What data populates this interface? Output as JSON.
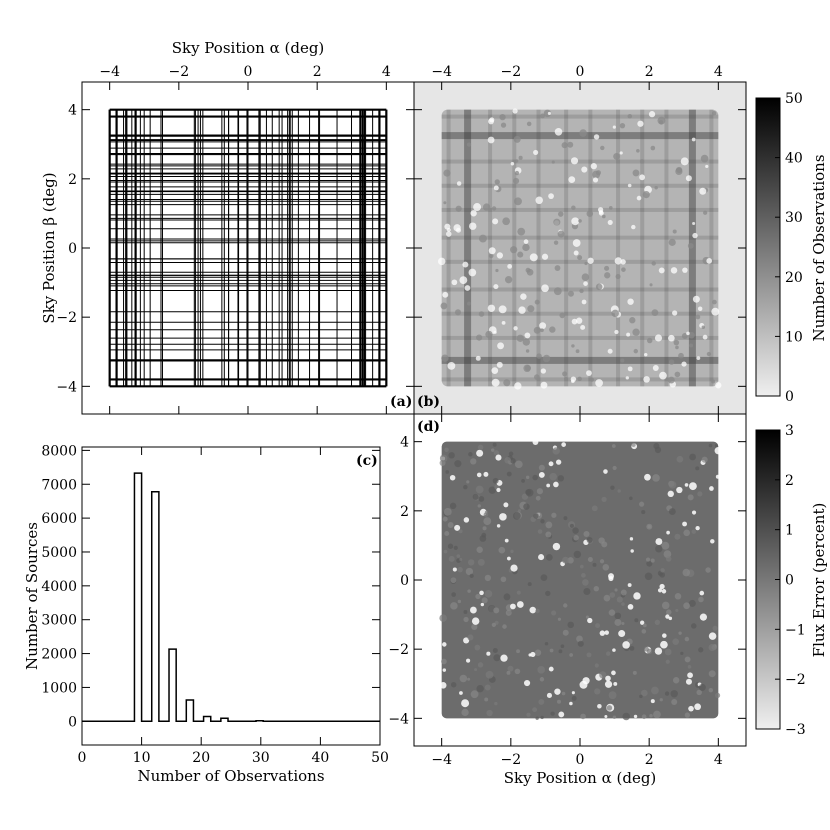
{
  "chart_data": [
    {
      "id": "a",
      "type": "grid-outlines",
      "panel_label": "(a)",
      "title_top": "Sky Position α (deg)",
      "ylabel": "Sky Position β (deg)",
      "xlim": [
        -4.8,
        4.8
      ],
      "ylim": [
        -4.8,
        4.8
      ],
      "xticks": [
        -4,
        -2,
        0,
        2,
        4
      ],
      "yticks": [
        -4,
        -2,
        0,
        2,
        4
      ],
      "xtick_labels": [
        "−4",
        "−2",
        "0",
        "2",
        "4"
      ],
      "ytick_labels": [
        "−4",
        "−2",
        "0",
        "2",
        "4"
      ],
      "field_extent": [
        -4.0,
        4.0
      ],
      "thick_lines": [
        -4.0,
        -3.8,
        -3.25,
        3.25,
        3.8,
        4.0
      ],
      "grid": false
    },
    {
      "id": "b",
      "type": "heatmap",
      "panel_label": "(b)",
      "xlim": [
        -4.8,
        4.8
      ],
      "ylim": [
        -4.8,
        4.8
      ],
      "xticks": [
        -4,
        -2,
        0,
        2,
        4
      ],
      "xtick_labels": [
        "−4",
        "−2",
        "0",
        "2",
        "4"
      ],
      "field_extent": [
        -4.0,
        4.0
      ],
      "colorbar": {
        "label": "Number of Observations",
        "range": [
          0,
          50
        ],
        "ticks": [
          0,
          10,
          20,
          30,
          40,
          50
        ],
        "tick_labels": [
          "0",
          "10",
          "20",
          "30",
          "40",
          "50"
        ]
      }
    },
    {
      "id": "c",
      "type": "histogram",
      "panel_label": "(c)",
      "xlabel": "Number of Observations",
      "ylabel": "Number of Sources",
      "xlim": [
        0,
        50
      ],
      "ylim": [
        -700,
        8100
      ],
      "xticks": [
        0,
        10,
        20,
        30,
        40,
        50
      ],
      "xtick_labels": [
        "0",
        "10",
        "20",
        "30",
        "40",
        "50"
      ],
      "yticks": [
        0,
        1000,
        2000,
        3000,
        4000,
        5000,
        6000,
        7000,
        8000
      ],
      "ytick_labels": [
        "0",
        "1000",
        "2000",
        "3000",
        "4000",
        "5000",
        "6000",
        "7000",
        "8000"
      ],
      "bins": [
        {
          "x0": 8.8,
          "x1": 10.0,
          "count": 7330
        },
        {
          "x0": 11.7,
          "x1": 12.9,
          "count": 6780
        },
        {
          "x0": 14.6,
          "x1": 15.8,
          "count": 2130
        },
        {
          "x0": 17.5,
          "x1": 18.7,
          "count": 630
        },
        {
          "x0": 20.4,
          "x1": 21.6,
          "count": 140
        },
        {
          "x0": 23.3,
          "x1": 24.5,
          "count": 90
        },
        {
          "x0": 29.2,
          "x1": 30.4,
          "count": 15
        }
      ]
    },
    {
      "id": "d",
      "type": "heatmap",
      "panel_label": "(d)",
      "xlabel": "Sky Position α (deg)",
      "xlim": [
        -4.8,
        4.8
      ],
      "ylim": [
        -4.8,
        4.8
      ],
      "xticks": [
        -4,
        -2,
        0,
        2,
        4
      ],
      "yticks": [
        -4,
        -2,
        0,
        2,
        4
      ],
      "xtick_labels": [
        "−4",
        "−2",
        "0",
        "2",
        "4"
      ],
      "ytick_labels": [
        "−4",
        "−2",
        "0",
        "2",
        "4"
      ],
      "field_extent": [
        -4.0,
        4.0
      ],
      "colorbar": {
        "label": "Flux Error (percent)",
        "range": [
          -3,
          3
        ],
        "ticks": [
          -3,
          -2,
          -1,
          0,
          1,
          2,
          3
        ],
        "tick_labels": [
          "−3",
          "−2",
          "−1",
          "0",
          "1",
          "2",
          "3"
        ]
      }
    }
  ],
  "colors": {
    "panel_b_background": "#e6e6e6",
    "coverage_base": "#b4b4b4",
    "flux_error_fill": "#6c6c6c",
    "outline": "#000000"
  }
}
